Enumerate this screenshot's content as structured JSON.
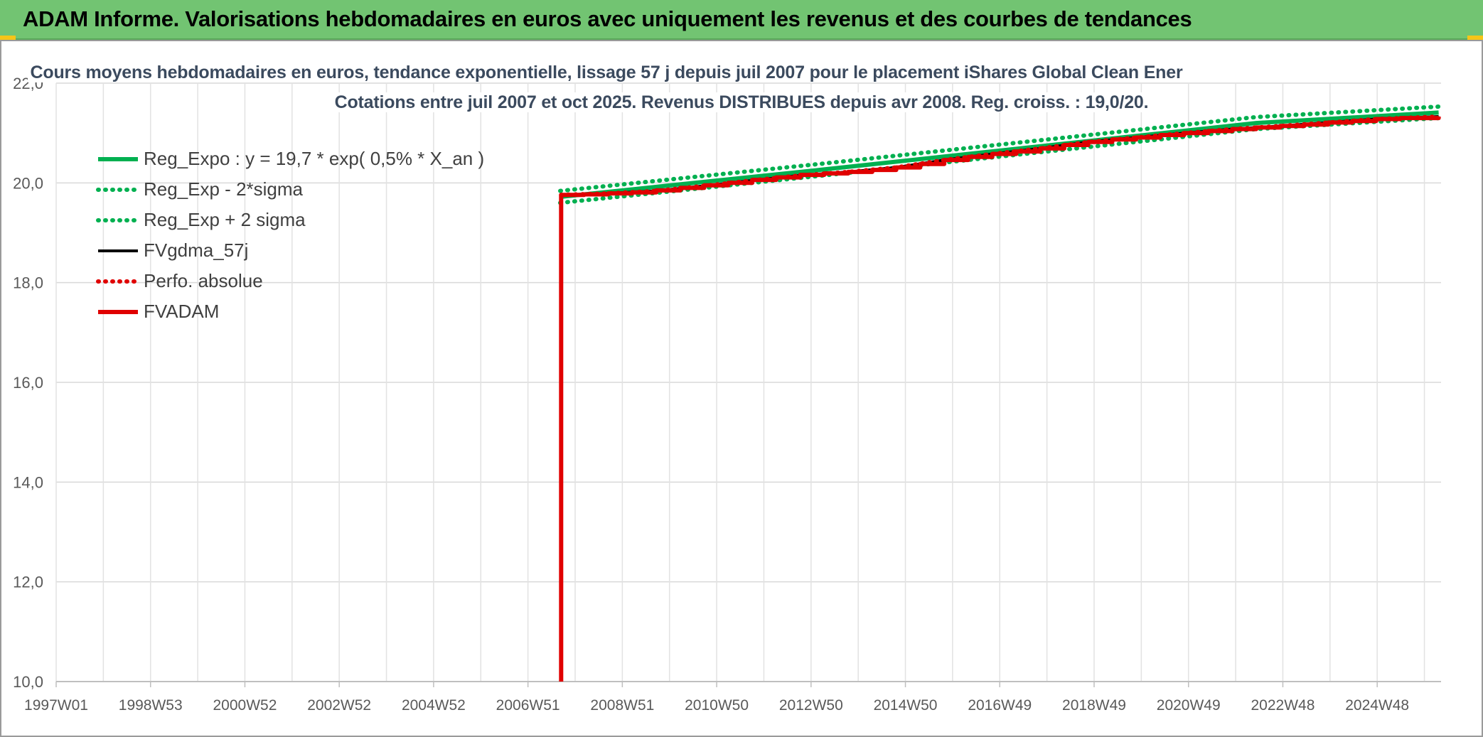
{
  "header": {
    "title": "ADAM Informe. Valorisations hebdomadaires en euros avec uniquement les revenus et des courbes de tendances"
  },
  "chart_data": {
    "type": "line",
    "title": "Cours moyens hebdomadaires en euros, tendance exponentielle, lissage 57 j depuis juil 2007 pour le placement iShares Global Clean Ener",
    "subtitle": "Cotations entre juil 2007 et oct 2025. Revenus DISTRIBUES depuis avr 2008. Reg. croiss. : 19,0/20.",
    "xlabel": "",
    "ylabel": "",
    "x_ticks": [
      "1997W01",
      "1998W53",
      "2000W52",
      "2002W52",
      "2004W52",
      "2006W51",
      "2008W51",
      "2010W50",
      "2012W50",
      "2014W50",
      "2016W49",
      "2018W49",
      "2020W49",
      "2022W48",
      "2024W48"
    ],
    "x_range": [
      1997.0,
      2025.85
    ],
    "ylim": [
      10.0,
      22.0
    ],
    "y_ticks": [
      "10,0",
      "12,0",
      "14,0",
      "16,0",
      "18,0",
      "20,0",
      "22,0"
    ],
    "grid": true,
    "legend_position": "top-left",
    "series": [
      {
        "name": "Reg_Expo : y = 19,7 * exp( 0,5% *  X_an )",
        "style": "solid",
        "color": "#00b050",
        "x": [
          2007.5,
          2010,
          2013,
          2016,
          2019,
          2022,
          2025.8
        ],
        "y": [
          19.72,
          19.97,
          20.27,
          20.58,
          20.89,
          21.2,
          21.41
        ]
      },
      {
        "name": "Reg_Exp - 2*sigma",
        "style": "dotted",
        "color": "#00b050",
        "x": [
          2007.5,
          2010,
          2013,
          2016,
          2019,
          2022,
          2025.8
        ],
        "y": [
          19.6,
          19.85,
          20.15,
          20.46,
          20.77,
          21.08,
          21.3
        ]
      },
      {
        "name": "Reg_Exp + 2 sigma",
        "style": "dotted",
        "color": "#00b050",
        "x": [
          2007.5,
          2010,
          2013,
          2016,
          2019,
          2022,
          2025.8
        ],
        "y": [
          19.84,
          20.09,
          20.39,
          20.7,
          21.01,
          21.32,
          21.53
        ]
      },
      {
        "name": "FVgdma_57j",
        "style": "solid",
        "color": "#000000",
        "x": [
          2007.52,
          2008.5,
          2009.5,
          2010.5,
          2011.5,
          2012.5,
          2013.5,
          2014.5,
          2015.5,
          2016.5,
          2017.5,
          2018.5,
          2019.5,
          2020.5,
          2021.5,
          2022.5,
          2023.5,
          2024.5,
          2025.8
        ],
        "y": [
          19.76,
          19.79,
          19.84,
          19.94,
          20.05,
          20.15,
          20.22,
          20.31,
          20.46,
          20.58,
          20.69,
          20.82,
          20.91,
          21.0,
          21.08,
          21.14,
          21.21,
          21.28,
          21.33
        ]
      },
      {
        "name": "Perfo. absolue",
        "style": "dotted",
        "color": "#e00000",
        "x": [
          2007.52,
          2008.5,
          2009.5,
          2010.5,
          2011.5,
          2012.5,
          2013.5,
          2014.5,
          2015.5,
          2016.5,
          2017.5,
          2018.5,
          2019.5,
          2020.5,
          2021.5,
          2022.5,
          2023.5,
          2024.5,
          2025.8
        ],
        "y": [
          19.76,
          19.79,
          19.84,
          19.94,
          20.05,
          20.15,
          20.22,
          20.31,
          20.46,
          20.58,
          20.69,
          20.82,
          20.91,
          21.0,
          21.08,
          21.14,
          21.21,
          21.28,
          21.33
        ]
      },
      {
        "name": "FVADAM",
        "style": "solid",
        "color": "#e00000",
        "x": [
          2007.52,
          2007.52,
          2008.0,
          2008.5,
          2009.0,
          2009.5,
          2010.0,
          2010.5,
          2011.0,
          2011.5,
          2012.0,
          2012.5,
          2013.0,
          2013.5,
          2014.0,
          2014.5,
          2015.0,
          2015.5,
          2016.0,
          2016.5,
          2017.0,
          2017.5,
          2018.0,
          2018.5,
          2019.0,
          2019.5,
          2020.0,
          2020.5,
          2021.0,
          2021.5,
          2022.0,
          2022.5,
          2023.0,
          2023.5,
          2024.0,
          2024.5,
          2025.0,
          2025.8
        ],
        "y": [
          10.0,
          19.76,
          19.77,
          19.79,
          19.81,
          19.85,
          19.9,
          19.95,
          20.0,
          20.06,
          20.11,
          20.16,
          20.19,
          20.22,
          20.26,
          20.31,
          20.38,
          20.46,
          20.52,
          20.58,
          20.63,
          20.69,
          20.76,
          20.82,
          20.87,
          20.91,
          20.96,
          21.0,
          21.04,
          21.08,
          21.11,
          21.14,
          21.17,
          21.21,
          21.24,
          21.28,
          21.3,
          21.33
        ]
      }
    ]
  }
}
